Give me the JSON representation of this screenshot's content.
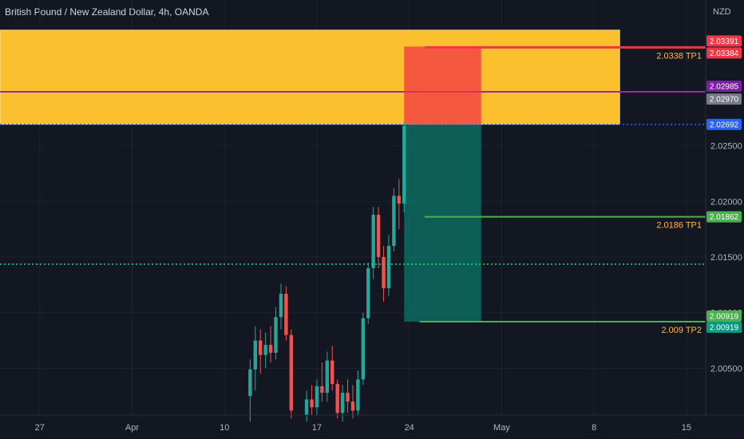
{
  "header": {
    "title": "British Pound / New Zealand Dollar, 4h, OANDA"
  },
  "chart_data": {
    "type": "candlestick",
    "currency": "NZD",
    "y_ticks": [
      2.025,
      2.02,
      2.015,
      2.01,
      2.005
    ],
    "ylim": [
      2.0008,
      2.0381
    ],
    "x_ticks": [
      {
        "label": "27",
        "bar": 8
      },
      {
        "label": "Apr",
        "bar": 26
      },
      {
        "label": "10",
        "bar": 44
      },
      {
        "label": "17",
        "bar": 62
      },
      {
        "label": "24",
        "bar": 80
      },
      {
        "label": "May",
        "bar": 98
      },
      {
        "label": "8",
        "bar": 116
      },
      {
        "label": "15",
        "bar": 134
      }
    ],
    "supply_zone": {
      "from": 2.02692,
      "to": 2.0354,
      "midline": 2.02985,
      "color": "#fbc02d",
      "midline_color": "#9c27b0"
    },
    "short_position": {
      "entry": 2.02692,
      "stop": 2.03391,
      "target": 2.00919,
      "bar_start": 79,
      "bar_end": 94
    },
    "levels": [
      {
        "label": "2.0338 TP1",
        "price": 2.03384,
        "color": "#f23645",
        "bar_start": 83
      },
      {
        "label": "2.0186 TP1",
        "price": 2.01862,
        "color": "#4caf50",
        "bar_start": 83
      },
      {
        "label": "2.009 TP2",
        "price": 2.00919,
        "color": "#4caf50",
        "bar_start": 82
      }
    ],
    "current_price_line": {
      "price": 2.01436,
      "color": "#00e676"
    },
    "price_tags": [
      {
        "text": "2.03391",
        "price": 2.03391,
        "color": "#f23645",
        "offset": -7
      },
      {
        "text": "2.03384",
        "price": 2.03384,
        "color": "#f23645",
        "offset": 7
      },
      {
        "text": "2.02985",
        "price": 2.02985,
        "color": "#7b1fa2",
        "offset": -7
      },
      {
        "text": "2.02970",
        "price": 2.0297,
        "color": "#787b86",
        "offset": 7
      },
      {
        "text": "2.02692",
        "price": 2.02692,
        "color": "#2962ff",
        "offset": 0
      },
      {
        "text": "2.01862",
        "price": 2.01862,
        "color": "#4caf50",
        "offset": 0
      },
      {
        "text": "2.00919",
        "price": 2.00919,
        "color": "#4caf50",
        "offset": -7
      },
      {
        "text": "2.00919",
        "price": 2.00919,
        "color": "#089981",
        "offset": 7
      }
    ],
    "candles": [
      {
        "bar": 49,
        "o": 2.0025,
        "h": 2.0058,
        "l": 2.0002,
        "c": 2.0049
      },
      {
        "bar": 50,
        "o": 2.0049,
        "h": 2.0088,
        "l": 2.003,
        "c": 2.0075
      },
      {
        "bar": 51,
        "o": 2.0075,
        "h": 2.0085,
        "l": 2.0045,
        "c": 2.0062
      },
      {
        "bar": 52,
        "o": 2.0062,
        "h": 2.0082,
        "l": 2.005,
        "c": 2.0071
      },
      {
        "bar": 53,
        "o": 2.0071,
        "h": 2.0088,
        "l": 2.0055,
        "c": 2.0064
      },
      {
        "bar": 54,
        "o": 2.0064,
        "h": 2.0105,
        "l": 2.0058,
        "c": 2.0096
      },
      {
        "bar": 55,
        "o": 2.0096,
        "h": 2.0126,
        "l": 2.0085,
        "c": 2.0117
      },
      {
        "bar": 56,
        "o": 2.0117,
        "h": 2.0124,
        "l": 2.0075,
        "c": 2.008
      },
      {
        "bar": 57,
        "o": 2.008,
        "h": 2.0085,
        "l": 2.0005,
        "c": 2.0012
      },
      {
        "bar": 60,
        "o": 2.0008,
        "h": 2.003,
        "l": 2.0002,
        "c": 2.0022
      },
      {
        "bar": 61,
        "o": 2.0022,
        "h": 2.0035,
        "l": 2.0008,
        "c": 2.0015
      },
      {
        "bar": 62,
        "o": 2.0015,
        "h": 2.004,
        "l": 2.0008,
        "c": 2.0034
      },
      {
        "bar": 63,
        "o": 2.0034,
        "h": 2.0055,
        "l": 2.002,
        "c": 2.0028
      },
      {
        "bar": 64,
        "o": 2.0028,
        "h": 2.0065,
        "l": 2.002,
        "c": 2.0057
      },
      {
        "bar": 65,
        "o": 2.0057,
        "h": 2.007,
        "l": 2.003,
        "c": 2.0036
      },
      {
        "bar": 66,
        "o": 2.0036,
        "h": 2.004,
        "l": 2.0005,
        "c": 2.001
      },
      {
        "bar": 67,
        "o": 2.001,
        "h": 2.0035,
        "l": 2.0002,
        "c": 2.0028
      },
      {
        "bar": 68,
        "o": 2.0028,
        "h": 2.004,
        "l": 2.001,
        "c": 2.002
      },
      {
        "bar": 69,
        "o": 2.002,
        "h": 2.0035,
        "l": 2.0005,
        "c": 2.0012
      },
      {
        "bar": 70,
        "o": 2.0012,
        "h": 2.0048,
        "l": 2.0008,
        "c": 2.004
      },
      {
        "bar": 71,
        "o": 2.004,
        "h": 2.01,
        "l": 2.0035,
        "c": 2.0095
      },
      {
        "bar": 72,
        "o": 2.0095,
        "h": 2.0145,
        "l": 2.009,
        "c": 2.014
      },
      {
        "bar": 73,
        "o": 2.014,
        "h": 2.0195,
        "l": 2.013,
        "c": 2.0188
      },
      {
        "bar": 74,
        "o": 2.0188,
        "h": 2.0195,
        "l": 2.014,
        "c": 2.015
      },
      {
        "bar": 75,
        "o": 2.015,
        "h": 2.016,
        "l": 2.011,
        "c": 2.0122
      },
      {
        "bar": 76,
        "o": 2.0122,
        "h": 2.017,
        "l": 2.0115,
        "c": 2.016
      },
      {
        "bar": 77,
        "o": 2.016,
        "h": 2.0212,
        "l": 2.0155,
        "c": 2.0205
      },
      {
        "bar": 78,
        "o": 2.0205,
        "h": 2.022,
        "l": 2.0175,
        "c": 2.0198
      },
      {
        "bar": 79,
        "o": 2.0198,
        "h": 2.0272,
        "l": 2.019,
        "c": 2.0268
      }
    ]
  }
}
